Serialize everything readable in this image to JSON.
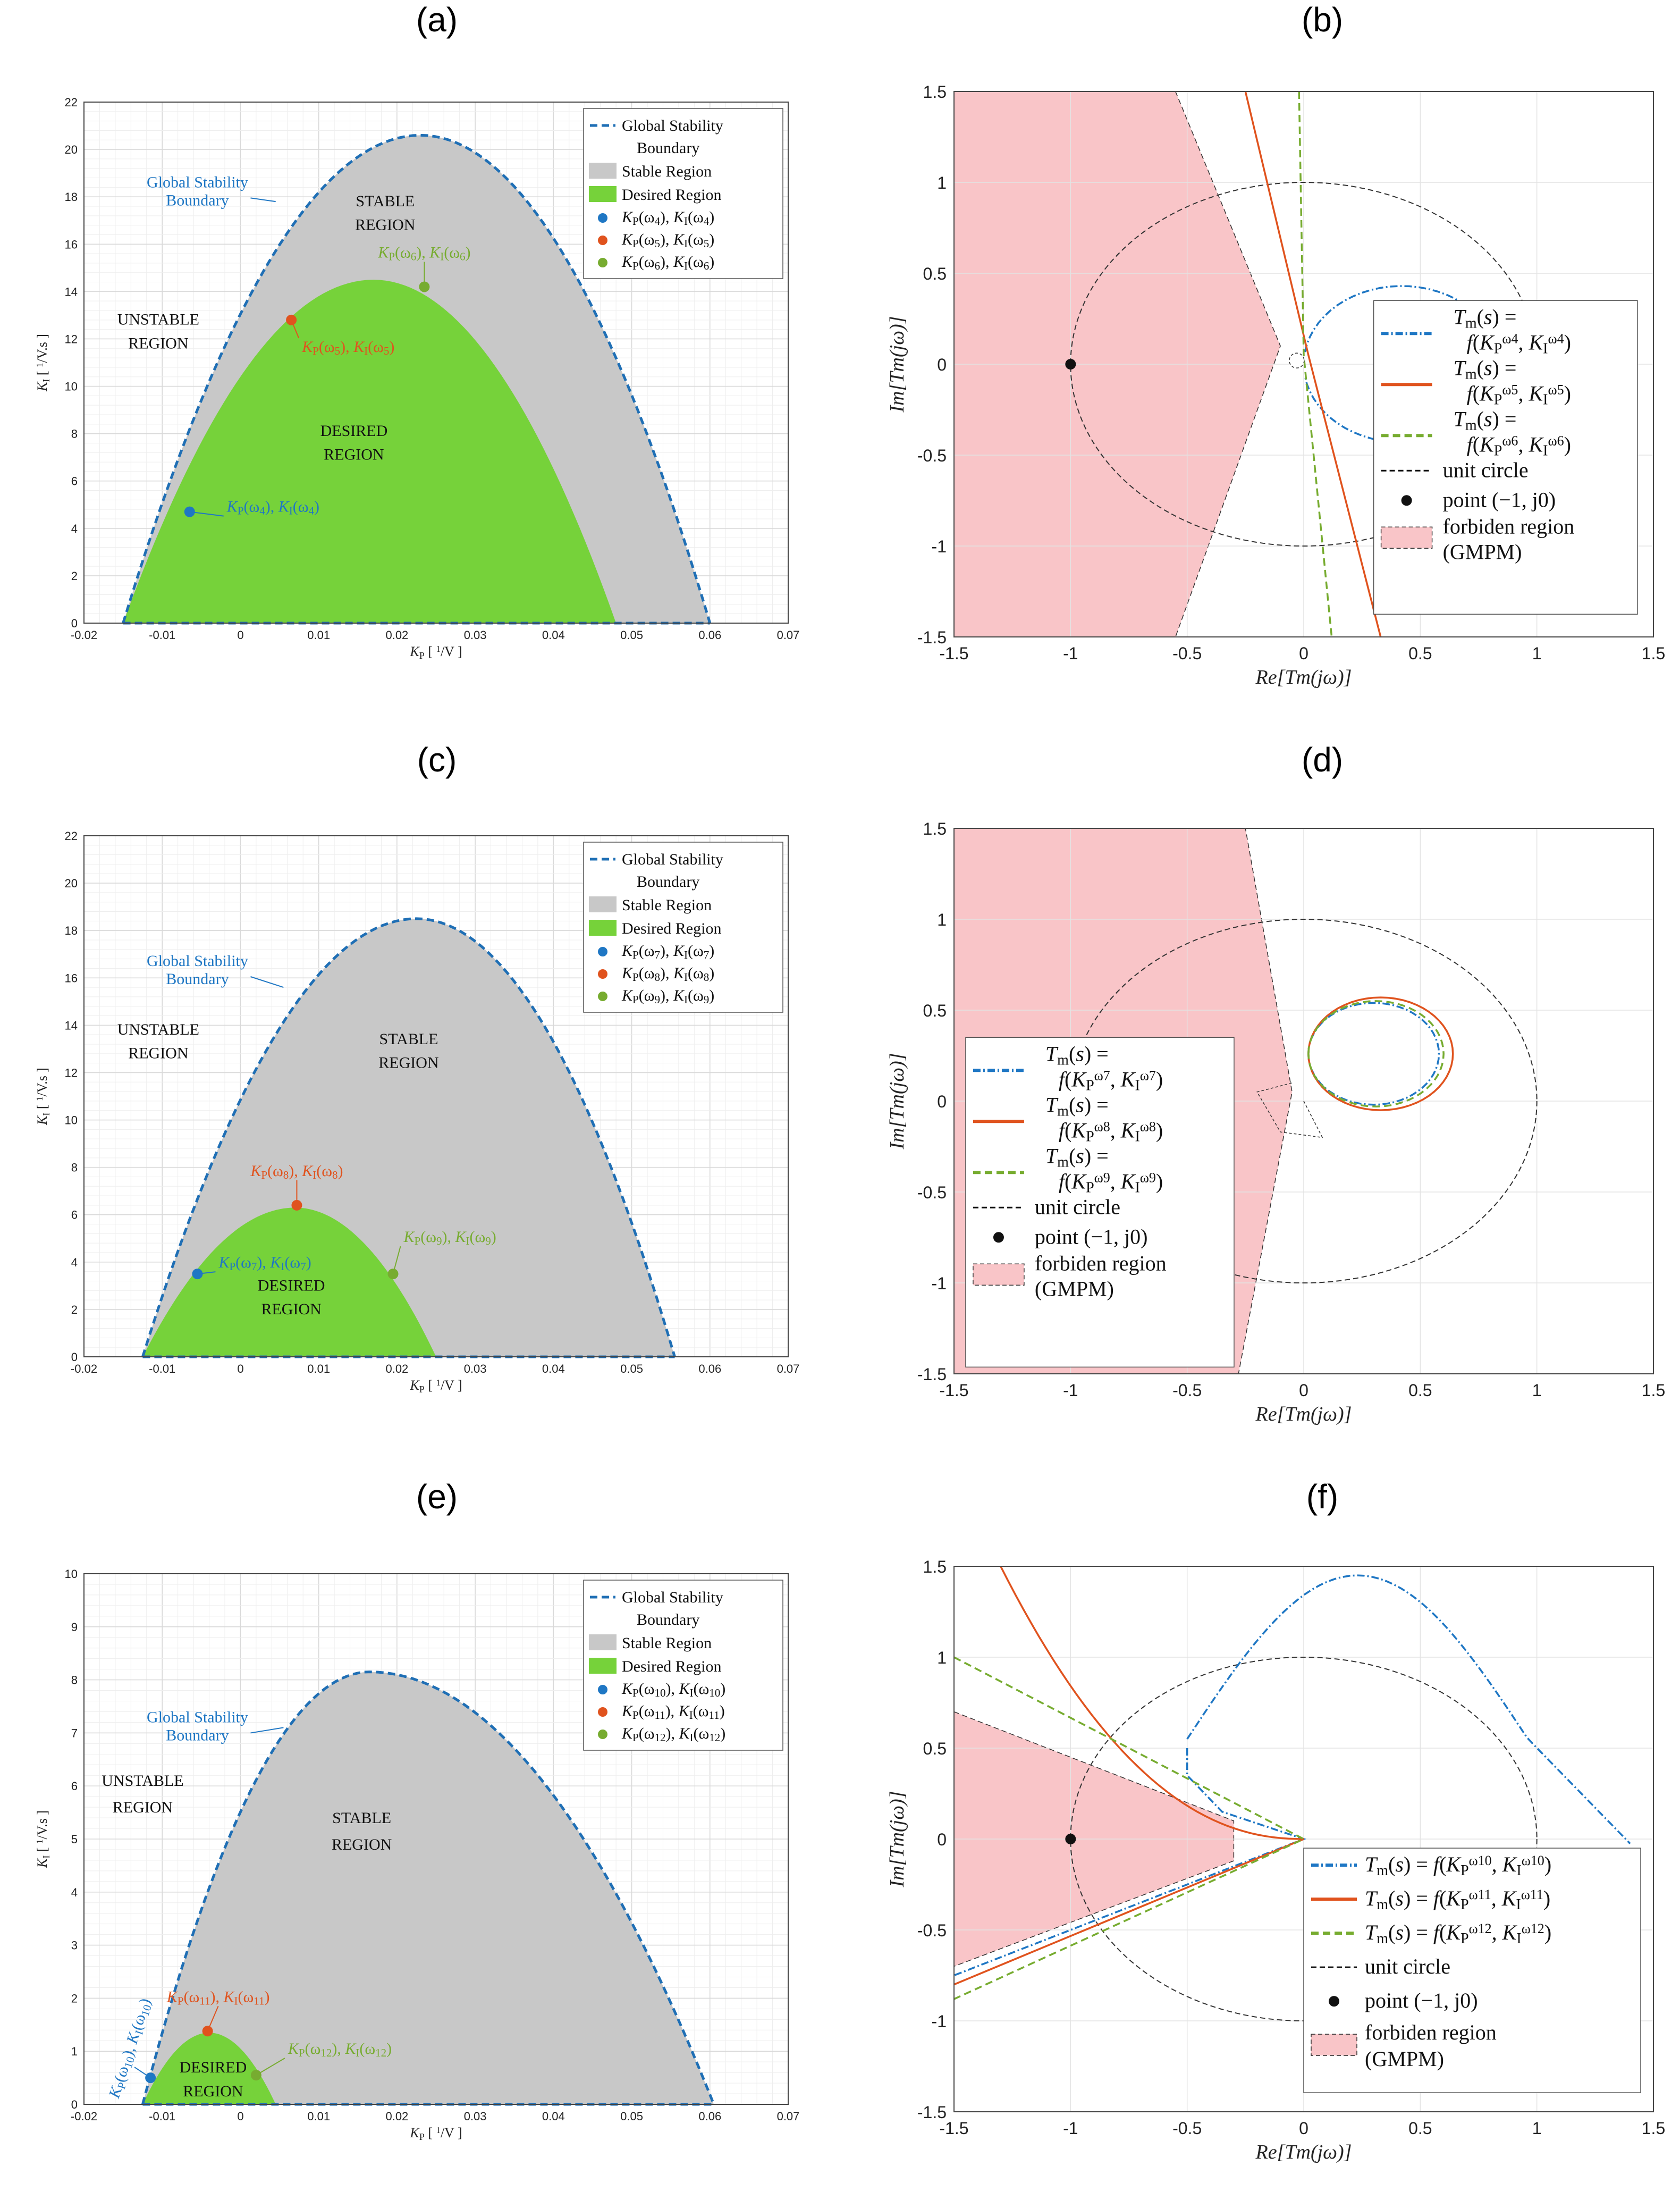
{
  "panels": {
    "a": "(a)",
    "b": "(b)",
    "c": "(c)",
    "d": "(d)",
    "e": "(e)",
    "f": "(f)"
  },
  "colors": {
    "boundary": "#1f6fb5",
    "stable": "#c8c8c8",
    "desired": "#76d23a",
    "blue": "#1f77c4",
    "orange": "#e0531e",
    "green": "#77ac30",
    "forbidden": "#f9c5c8"
  },
  "chart_data": [
    {
      "id": "a",
      "type": "area",
      "xlabel": "K_P [ 1/V ]",
      "ylabel": "K_I [ 1/V.s ]",
      "xlim": [
        -0.02,
        0.07
      ],
      "ylim": [
        0,
        22
      ],
      "xticks": [
        "-0.02",
        "-0.01",
        "0",
        "0.01",
        "0.02",
        "0.03",
        "0.04",
        "0.05",
        "0.06",
        "0.07"
      ],
      "yticks": [
        "0",
        "2",
        "4",
        "6",
        "8",
        "10",
        "12",
        "14",
        "16",
        "18",
        "20",
        "22"
      ],
      "stable_boundary": {
        "x0": -0.015,
        "x1": 0.06,
        "peak_x": 0.023,
        "peak_y": 20.6
      },
      "desired_boundary": {
        "x0": -0.015,
        "x1": 0.048,
        "peak_x": 0.017,
        "peak_y": 14.5
      },
      "points": [
        {
          "label": "K_P(ω4), K_I(ω4)",
          "x": -0.0065,
          "y": 4.7,
          "color": "blue"
        },
        {
          "label": "K_P(ω5), K_I(ω5)",
          "x": 0.0065,
          "y": 12.8,
          "color": "orange"
        },
        {
          "label": "K_P(ω6), K_I(ω6)",
          "x": 0.0235,
          "y": 14.2,
          "color": "green"
        }
      ],
      "regions": [
        "STABLE",
        "REGION",
        "UNSTABLE",
        "REGION",
        "DESIRED",
        "REGION"
      ],
      "boundary_label": [
        "Global Stability",
        "Boundary"
      ],
      "legend": [
        "Global Stability",
        "Boundary",
        "Stable Region",
        "Desired Region",
        "K_P(ω4), K_I(ω4)",
        "K_P(ω5), K_I(ω5)",
        "K_P(ω6), K_I(ω6)"
      ]
    },
    {
      "id": "b",
      "type": "line",
      "xlabel": "Re[T_m(jω)]",
      "ylabel": "Im[T_m(jω)]",
      "xlim": [
        -1.5,
        1.5
      ],
      "ylim": [
        -1.5,
        1.5
      ],
      "xticks": [
        "-1.5",
        "-1",
        "-0.5",
        "0",
        "0.5",
        "1",
        "1.5"
      ],
      "yticks": [
        "-1.5",
        "-1",
        "-0.5",
        "0",
        "0.5",
        "1",
        "1.5"
      ],
      "series": [
        {
          "name": "T_m(s) = f(K_P^ω4, K_I^ω4)",
          "color": "blue"
        },
        {
          "name": "T_m(s) = f(K_P^ω5, K_I^ω5)",
          "color": "orange"
        },
        {
          "name": "T_m(s) = f(K_P^ω6, K_I^ω6)",
          "color": "green"
        }
      ],
      "legend": [
        "T_m(s) =",
        "f(K_P^ω4, K_I^ω4)",
        "T_m(s) =",
        "f(K_P^ω5, K_I^ω5)",
        "T_m(s) =",
        "f(K_P^ω6, K_I^ω6)",
        "unit circle",
        "point (−1, j0)",
        "forbiden region",
        "(GMPM)"
      ]
    },
    {
      "id": "c",
      "type": "area",
      "xlabel": "K_P [ 1/V ]",
      "ylabel": "K_I [ 1/V.s ]",
      "xlim": [
        -0.02,
        0.07
      ],
      "ylim": [
        0,
        22
      ],
      "xticks": [
        "-0.02",
        "-0.01",
        "0",
        "0.01",
        "0.02",
        "0.03",
        "0.04",
        "0.05",
        "0.06",
        "0.07"
      ],
      "yticks": [
        "0",
        "2",
        "4",
        "6",
        "8",
        "10",
        "12",
        "14",
        "16",
        "18",
        "20",
        "22"
      ],
      "stable_boundary": {
        "x0": -0.0125,
        "x1": 0.0555,
        "peak_x": 0.0225,
        "peak_y": 18.5
      },
      "desired_boundary": {
        "x0": -0.0125,
        "x1": 0.025,
        "peak_x": 0.007,
        "peak_y": 6.3
      },
      "points": [
        {
          "label": "K_P(ω7), K_I(ω7)",
          "x": -0.0055,
          "y": 3.5,
          "color": "blue"
        },
        {
          "label": "K_P(ω8), K_I(ω8)",
          "x": 0.0072,
          "y": 6.4,
          "color": "orange"
        },
        {
          "label": "K_P(ω9), K_I(ω9)",
          "x": 0.0195,
          "y": 3.5,
          "color": "green"
        }
      ],
      "regions": [
        "STABLE",
        "REGION",
        "UNSTABLE",
        "REGION",
        "DESIRED",
        "REGION"
      ],
      "boundary_label": [
        "Global Stability",
        "Boundary"
      ],
      "legend": [
        "Global Stability",
        "Boundary",
        "Stable Region",
        "Desired Region",
        "K_P(ω7), K_I(ω7)",
        "K_P(ω8), K_I(ω8)",
        "K_P(ω9), K_I(ω9)"
      ]
    },
    {
      "id": "d",
      "type": "line",
      "xlabel": "Re[T_m(jω)]",
      "ylabel": "Im[T_m(jω)]",
      "xlim": [
        -1.5,
        1.5
      ],
      "ylim": [
        -1.5,
        1.5
      ],
      "xticks": [
        "-1.5",
        "-1",
        "-0.5",
        "0",
        "0.5",
        "1",
        "1.5"
      ],
      "yticks": [
        "-1.5",
        "-1",
        "-0.5",
        "0",
        "0.5",
        "1",
        "1.5"
      ],
      "series": [
        {
          "name": "T_m(s) = f(K_P^ω7, K_I^ω7)",
          "color": "blue"
        },
        {
          "name": "T_m(s) = f(K_P^ω8, K_I^ω8)",
          "color": "orange"
        },
        {
          "name": "T_m(s) = f(K_P^ω9, K_I^ω9)",
          "color": "green"
        }
      ],
      "legend": [
        "T_m(s) =",
        "f(K_P^ω7, K_I^ω7)",
        "T_m(s) =",
        "f(K_P^ω8, K_I^ω8)",
        "T_m(s) =",
        "f(K_P^ω9, K_I^ω9)",
        "unit circle",
        "point (−1, j0)",
        "forbiden region",
        "(GMPM)"
      ]
    },
    {
      "id": "e",
      "type": "area",
      "xlabel": "K_P [ 1/V ]",
      "ylabel": "K_I [ 1/V.s ]",
      "xlim": [
        -0.02,
        0.07
      ],
      "ylim": [
        0,
        10
      ],
      "xticks": [
        "-0.02",
        "-0.01",
        "0",
        "0.01",
        "0.02",
        "0.03",
        "0.04",
        "0.05",
        "0.06",
        "0.07"
      ],
      "yticks": [
        "0",
        "1",
        "2",
        "3",
        "4",
        "5",
        "6",
        "7",
        "8",
        "9",
        "10"
      ],
      "stable_boundary": {
        "x0": -0.0125,
        "x1": 0.0605,
        "peak_x": 0.0165,
        "peak_y": 8.15
      },
      "desired_boundary": {
        "x0": -0.0125,
        "x1": 0.0045,
        "peak_x": -0.004,
        "peak_y": 1.35
      },
      "points": [
        {
          "label": "K_P(ω10), K_I(ω10)",
          "x": -0.0115,
          "y": 0.5,
          "color": "blue"
        },
        {
          "label": "K_P(ω11), K_I(ω11)",
          "x": -0.0042,
          "y": 1.38,
          "color": "orange"
        },
        {
          "label": "K_P(ω12), K_I(ω12)",
          "x": 0.002,
          "y": 0.55,
          "color": "green"
        }
      ],
      "regions": [
        "STABLE",
        "REGION",
        "UNSTABLE",
        "REGION",
        "DESIRED",
        "REGION"
      ],
      "boundary_label": [
        "Global Stability",
        "Boundary"
      ],
      "legend": [
        "Global Stability",
        "Boundary",
        "Stable Region",
        "Desired Region",
        "K_P(ω10), K_I(ω10)",
        "K_P(ω11), K_I(ω11)",
        "K_P(ω12), K_I(ω12)"
      ]
    },
    {
      "id": "f",
      "type": "line",
      "xlabel": "Re[T_m(jω)]",
      "ylabel": "Im[T_m(jω)]",
      "xlim": [
        -1.5,
        1.5
      ],
      "ylim": [
        -1.5,
        1.5
      ],
      "xticks": [
        "-1.5",
        "-1",
        "-0.5",
        "0",
        "0.5",
        "1",
        "1.5"
      ],
      "yticks": [
        "-1.5",
        "-1",
        "-0.5",
        "0",
        "0.5",
        "1",
        "1.5"
      ],
      "series": [
        {
          "name": "T_m(s) = f(K_P^ω10, K_I^ω10)",
          "color": "blue"
        },
        {
          "name": "T_m(s) = f(K_P^ω11, K_I^ω11)",
          "color": "orange"
        },
        {
          "name": "T_m(s) = f(K_P^ω12, K_I^ω12)",
          "color": "green"
        }
      ],
      "legend": [
        "T_m(s) = f(K_P^ω10, K_I^ω10)",
        "T_m(s) = f(K_P^ω11, K_I^ω11)",
        "T_m(s) = f(K_P^ω12, K_I^ω12)",
        "unit circle",
        "point (−1, j0)",
        "forbiden region",
        "(GMPM)"
      ]
    }
  ]
}
